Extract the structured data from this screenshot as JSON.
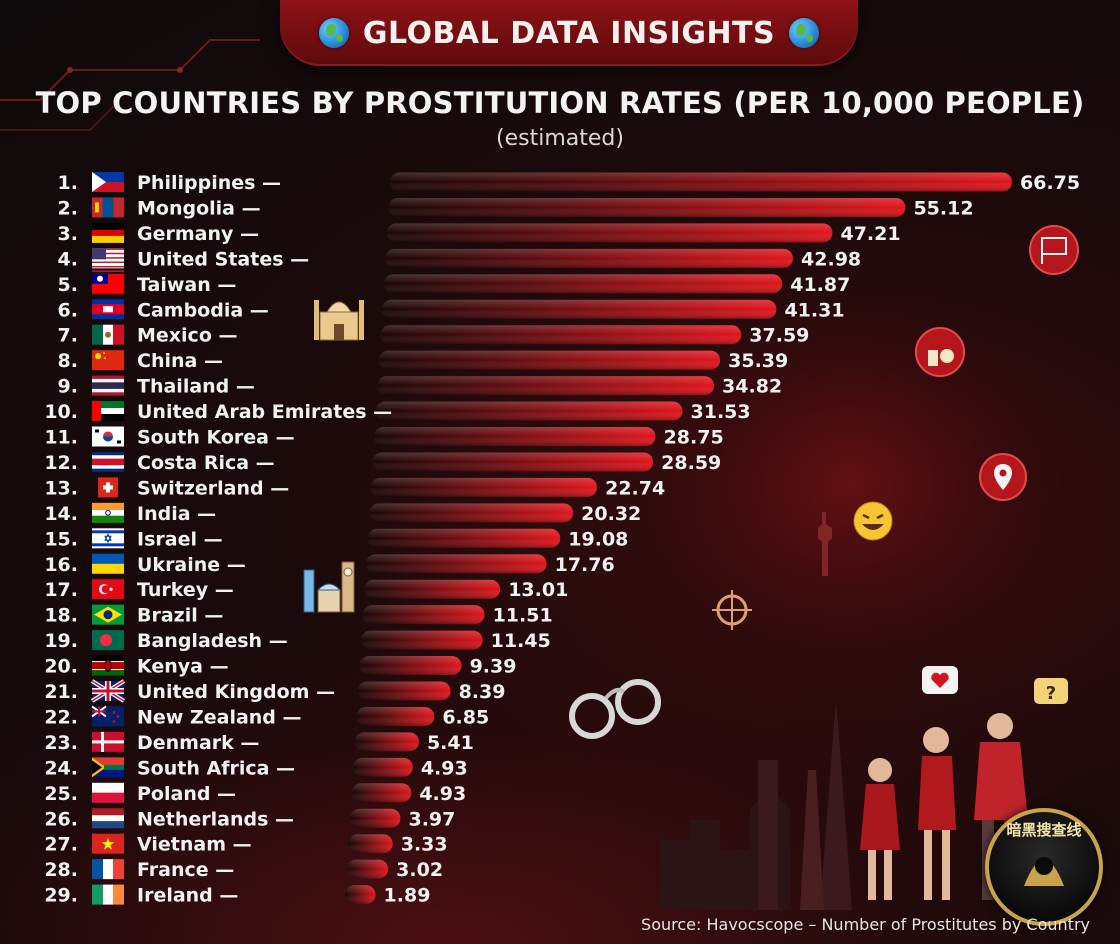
{
  "header": {
    "title": "GLOBAL DATA INSIGHTS",
    "left_icon": "globe-icon",
    "right_icon": "globe-icon"
  },
  "badge": {
    "text": "暗黑搜查线"
  },
  "source": "Source: Havocscope – Number of Prostitutes by Country",
  "colors": {
    "bar": "#d0161c",
    "bar_dark": "#3a0a0c",
    "banner": "#8e1216",
    "background": "#120b0c"
  },
  "chart_data": {
    "type": "bar",
    "orientation": "horizontal",
    "title": "TOP COUNTRIES BY PROSTITUTION RATES (PER 10,000 PEOPLE)",
    "subtitle": "(estimated)",
    "xlim": [
      0,
      66.75
    ],
    "grid": false,
    "legend": "none",
    "categories": [
      "Philippines",
      "Mongolia",
      "Germany",
      "United States",
      "Taiwan",
      "Cambodia",
      "Mexico",
      "China",
      "Thailand",
      "United Arab Emirates",
      "South Korea",
      "Costa Rica",
      "Switzerland",
      "India",
      "Israel",
      "Ukraine",
      "Turkey",
      "Brazil",
      "Bangladesh",
      "Kenya",
      "United Kingdom",
      "New Zealand",
      "Denmark",
      "South Africa",
      "Poland",
      "Netherlands",
      "Vietnam",
      "France",
      "Ireland"
    ],
    "ranks": [
      "1.",
      "2.",
      "3.",
      "4.",
      "5.",
      "6.",
      "7.",
      "8.",
      "9.",
      "10.",
      "11.",
      "12.",
      "13.",
      "14.",
      "15.",
      "16.",
      "17.",
      "18.",
      "19.",
      "20.",
      "21.",
      "22.",
      "23.",
      "24.",
      "25.",
      "26.",
      "27.",
      "28.",
      "29."
    ],
    "values": [
      66.75,
      55.12,
      47.21,
      42.98,
      41.87,
      41.31,
      37.59,
      35.39,
      34.82,
      31.53,
      28.75,
      28.59,
      22.74,
      20.32,
      19.08,
      17.76,
      13.01,
      11.51,
      11.45,
      9.39,
      8.39,
      6.85,
      5.41,
      4.93,
      4.93,
      3.97,
      3.33,
      3.02,
      1.89
    ],
    "value_labels": [
      "66.75",
      "55.12",
      "47.21",
      "42.98",
      "41.87",
      "41.31",
      "37.59",
      "35.39",
      "34.82",
      "31.53",
      "28.75",
      "28.59",
      "22.74",
      "20.32",
      "19.08",
      "17.76",
      "13.01",
      "11.51",
      "11.45",
      "9.39",
      "8.39",
      "6.85",
      "5.41",
      "4.93",
      "4.93",
      "3.97",
      "3.33",
      "3.02",
      "1.89"
    ],
    "flags": [
      "flag-philippines-icon",
      "flag-mongolia-icon",
      "flag-germany-icon",
      "flag-united-states-icon",
      "flag-taiwan-icon",
      "flag-cambodia-icon",
      "flag-mexico-icon",
      "flag-china-icon",
      "flag-thailand-icon",
      "flag-united-arab-emirates-icon",
      "flag-south-korea-icon",
      "flag-costa-rica-icon",
      "flag-switzerland-icon",
      "flag-india-icon",
      "flag-israel-icon",
      "flag-ukraine-icon",
      "flag-turkey-icon",
      "flag-brazil-icon",
      "flag-bangladesh-icon",
      "flag-kenya-icon",
      "flag-united-kingdom-icon",
      "flag-new-zealand-icon",
      "flag-denmark-icon",
      "flag-south-africa-icon",
      "flag-poland-icon",
      "flag-netherlands-icon",
      "flag-vietnam-icon",
      "flag-france-icon",
      "flag-ireland-icon"
    ]
  }
}
